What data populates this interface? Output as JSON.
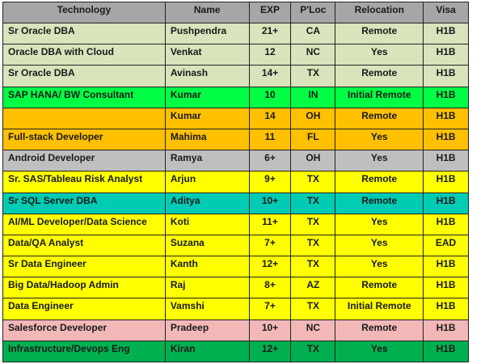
{
  "headers": [
    "Technology",
    "Name",
    "EXP",
    "P'Loc",
    "Relocation",
    "Visa"
  ],
  "rows": [
    {
      "technology": "Sr Oracle DBA",
      "name": "Pushpendra",
      "exp": "21+",
      "ploc": "CA",
      "relocation": "Remote",
      "visa": "H1B",
      "color": "#d8e4bc"
    },
    {
      "technology": "Oracle DBA with Cloud",
      "name": "Venkat",
      "exp": "12",
      "ploc": "NC",
      "relocation": "Yes",
      "visa": "H1B",
      "color": "#d8e4bc"
    },
    {
      "technology": "Sr Oracle DBA",
      "name": "Avinash",
      "exp": "14+",
      "ploc": "TX",
      "relocation": "Remote",
      "visa": "H1B",
      "color": "#d8e4bc"
    },
    {
      "technology": "SAP HANA/ BW Consultant",
      "name": "Kumar",
      "exp": "10",
      "ploc": "IN",
      "relocation": "Initial Remote",
      "visa": "H1B",
      "color": "#00ff44"
    },
    {
      "technology": "",
      "name": "Kumar",
      "exp": "14",
      "ploc": "OH",
      "relocation": "Remote",
      "visa": "H1B",
      "color": "#ffc000"
    },
    {
      "technology": "Full-stack Developer",
      "name": "Mahima",
      "exp": "11",
      "ploc": "FL",
      "relocation": "Yes",
      "visa": "H1B",
      "color": "#ffc000"
    },
    {
      "technology": "Android Developer",
      "name": "Ramya",
      "exp": "6+",
      "ploc": "OH",
      "relocation": "Yes",
      "visa": "H1B",
      "color": "#bfbfbf"
    },
    {
      "technology": "Sr. SAS/Tableau Risk Analyst",
      "name": "Arjun",
      "exp": "9+",
      "ploc": "TX",
      "relocation": "Remote",
      "visa": "H1B",
      "color": "#ffff00"
    },
    {
      "technology": "Sr SQL Server DBA",
      "name": "Aditya",
      "exp": "10+",
      "ploc": "TX",
      "relocation": "Remote",
      "visa": "H1B",
      "color": "#00ccb4"
    },
    {
      "technology": "AI/ML Developer/Data Science",
      "name": "Koti",
      "exp": "11+",
      "ploc": "TX",
      "relocation": "Yes",
      "visa": "H1B",
      "color": "#ffff00"
    },
    {
      "technology": "Data/QA Analyst",
      "name": "Suzana",
      "exp": "7+",
      "ploc": "TX",
      "relocation": "Yes",
      "visa": "EAD",
      "color": "#ffff00"
    },
    {
      "technology": "Sr Data Engineer",
      "name": "Kanth",
      "exp": "12+",
      "ploc": "TX",
      "relocation": "Yes",
      "visa": "H1B",
      "color": "#ffff00"
    },
    {
      "technology": "Big Data/Hadoop Admin",
      "name": "Raj",
      "exp": "8+",
      "ploc": "AZ",
      "relocation": "Remote",
      "visa": "H1B",
      "color": "#ffff00"
    },
    {
      "technology": "Data Engineer",
      "name": "Vamshi",
      "exp": "7+",
      "ploc": "TX",
      "relocation": "Initial Remote",
      "visa": "H1B",
      "color": "#ffff00"
    },
    {
      "technology": "Salesforce Developer",
      "name": "Pradeep",
      "exp": "10+",
      "ploc": "NC",
      "relocation": "Remote",
      "visa": "H1B",
      "color": "#f2b8b8"
    },
    {
      "technology": "Infrastructure/Devops Eng",
      "name": "Kiran",
      "exp": "12+",
      "ploc": "TX",
      "relocation": "Yes",
      "visa": "H1B",
      "color": "#00b050"
    }
  ]
}
